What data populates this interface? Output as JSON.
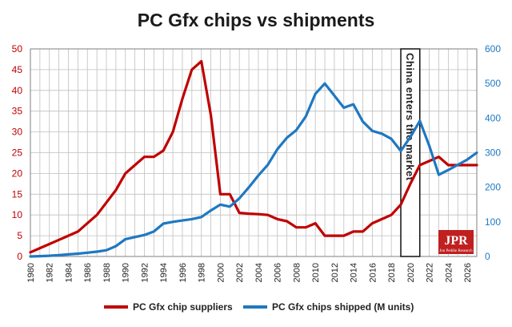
{
  "chart_data": {
    "type": "line",
    "title": "PC Gfx chips vs shipments",
    "x": [
      1980,
      1981,
      1982,
      1983,
      1984,
      1985,
      1986,
      1987,
      1988,
      1989,
      1990,
      1991,
      1992,
      1993,
      1994,
      1995,
      1996,
      1997,
      1998,
      1999,
      2000,
      2001,
      2002,
      2003,
      2004,
      2005,
      2006,
      2007,
      2008,
      2009,
      2010,
      2011,
      2012,
      2013,
      2014,
      2015,
      2016,
      2017,
      2018,
      2019,
      2020,
      2021,
      2022,
      2023,
      2024,
      2025,
      2026,
      2027
    ],
    "xticks": [
      1980,
      1982,
      1984,
      1986,
      1988,
      1990,
      1992,
      1994,
      1996,
      1998,
      2000,
      2002,
      2004,
      2006,
      2008,
      2010,
      2012,
      2014,
      2016,
      2018,
      2020,
      2022,
      2024,
      2026
    ],
    "xlim": [
      1980,
      2027
    ],
    "left_axis": {
      "ylim": [
        0,
        50
      ],
      "ticks": [
        0,
        5,
        10,
        15,
        20,
        25,
        30,
        35,
        40,
        45,
        50
      ],
      "color": "#c00000"
    },
    "right_axis": {
      "ylim": [
        0,
        600
      ],
      "ticks": [
        0,
        100,
        200,
        300,
        400,
        500,
        600
      ],
      "color": "#1f78c1"
    },
    "series": [
      {
        "name": "PC Gfx chip suppliers",
        "axis": "left",
        "color": "#c00000",
        "values": [
          1,
          2,
          3,
          4,
          5,
          6,
          8,
          10,
          13,
          16,
          20,
          22,
          24,
          24,
          25.5,
          30,
          38,
          45,
          47,
          34,
          15,
          15,
          10.5,
          10.3,
          10.2,
          10,
          9,
          8.5,
          7,
          7,
          8,
          5,
          5,
          5,
          6,
          6,
          8,
          9,
          10,
          12.5,
          17.5,
          22,
          23,
          24,
          22,
          22,
          22,
          22
        ]
      },
      {
        "name": "PC Gfx chips shipped (M units)",
        "axis": "right",
        "color": "#1f78c1",
        "values": [
          0,
          1,
          2,
          4,
          6,
          8,
          11,
          14,
          18,
          30,
          50,
          56,
          62,
          72,
          95,
          100,
          104,
          108,
          114,
          133,
          150,
          144,
          168,
          200,
          234,
          265,
          310,
          343,
          365,
          405,
          470,
          500,
          465,
          430,
          440,
          390,
          363,
          355,
          340,
          305,
          345,
          392,
          320,
          236,
          250,
          265,
          280,
          300
        ]
      }
    ],
    "annotation": {
      "text": "China enters the market",
      "x_start": 2019,
      "x_end": 2021
    },
    "grid": true,
    "legend_position": "bottom"
  },
  "logo": {
    "text": "JPR",
    "subtext": "Jon Peddie Research",
    "color": "#c02020"
  },
  "colors": {
    "red": "#c00000",
    "blue": "#1f78c1",
    "grid": "#bfbfbf"
  }
}
